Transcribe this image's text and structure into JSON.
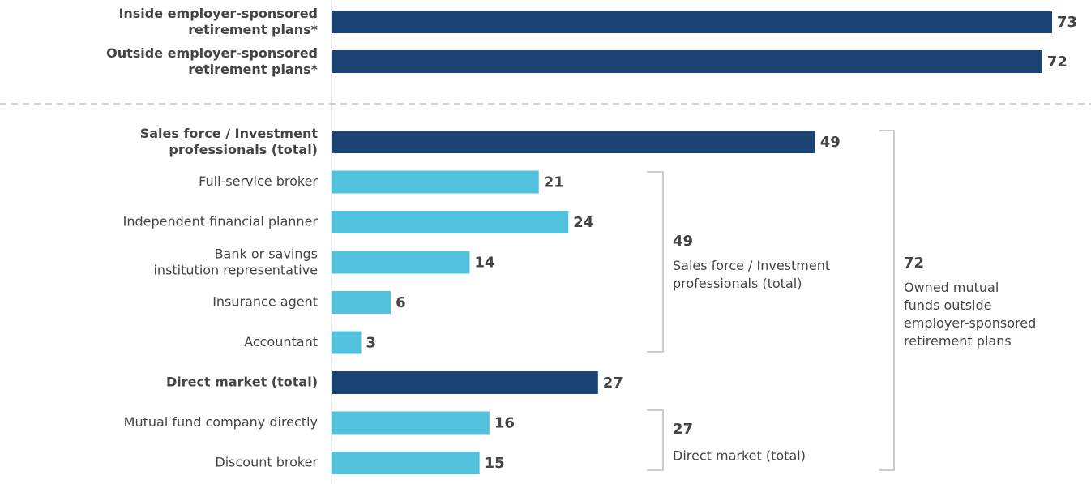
{
  "chart_data": {
    "type": "bar",
    "orientation": "horizontal",
    "categories": [
      "Inside employer-sponsored\nretirement plans*",
      "Outside employer-sponsored\nretirement plans*",
      "Sales force / Investment\nprofessionals (total)",
      "Full-service broker",
      "Independent financial planner",
      "Bank or savings\ninstitution representative",
      "Insurance agent",
      "Accountant",
      "Direct market (total)",
      "Mutual fund company directly",
      "Discount broker"
    ],
    "values": [
      73,
      72,
      49,
      21,
      24,
      14,
      6,
      3,
      27,
      16,
      15
    ],
    "colors": [
      "#1b4475",
      "#1b4475",
      "#1b4475",
      "#52c1dd",
      "#52c1dd",
      "#52c1dd",
      "#52c1dd",
      "#52c1dd",
      "#1b4475",
      "#52c1dd",
      "#52c1dd"
    ],
    "total_color": "#1b4475",
    "xlim": [
      0,
      73
    ],
    "annotations": [
      {
        "value": 49,
        "text": "Sales force / Investment\nprofessionals (total)"
      },
      {
        "value": 27,
        "text": "Direct market (total)"
      },
      {
        "value": 72,
        "text": "Owned mutual\nfunds outside\nemployer-sponsored\nretirement plans"
      }
    ]
  }
}
